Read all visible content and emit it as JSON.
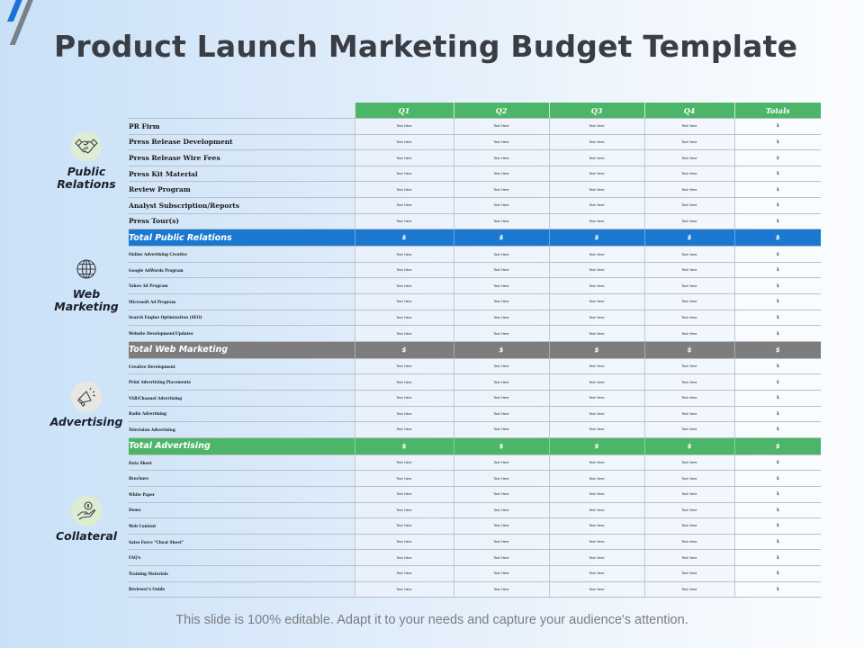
{
  "title": "Product Launch Marketing Budget Template",
  "footer": "This slide is 100% editable. Adapt it to your needs and capture your audience's attention.",
  "colors": {
    "header_green": "#4cb568",
    "total_public_relations": "#1b78d0",
    "total_web_marketing": "#7d7d7d",
    "total_advertising": "#4cb568"
  },
  "categories": [
    {
      "label_line1": "Public",
      "label_line2": "Relations",
      "icon": "handshake-icon"
    },
    {
      "label_line1": "Web",
      "label_line2": "Marketing",
      "icon": "globe-icon"
    },
    {
      "label_line1": "Advertising",
      "label_line2": "",
      "icon": "megaphone-icon"
    },
    {
      "label_line1": "Collateral",
      "label_line2": "",
      "icon": "hand-coin-icon"
    }
  ],
  "table": {
    "columns": [
      "Q1",
      "Q2",
      "Q3",
      "Q4",
      "Totals"
    ],
    "cell_placeholder": "Text Here",
    "total_placeholder": "$",
    "sections": [
      {
        "name": "Public Relations",
        "rows": [
          "PR Firm",
          "Press Release Development",
          "Press Release Wire Fees",
          "Press Kit Material",
          "Review Program",
          "Analyst Subscription/Reports",
          "Press Tour(s)"
        ],
        "total_label": "Total Public Relations",
        "total_values": [
          "$",
          "$",
          "$",
          "$",
          "$"
        ]
      },
      {
        "name": "Web Marketing",
        "rows": [
          "Online Advertising Creative",
          "Google AdWords Program",
          "Yahoo Ad Program",
          "Microsoft Ad Program",
          "Search Engine Optimization (SEO)",
          "Website Development/Updates"
        ],
        "total_label": "Total Web Marketing",
        "total_values": [
          "$",
          "$",
          "$",
          "$",
          "$"
        ]
      },
      {
        "name": "Advertising",
        "rows": [
          "Creative Development",
          "Print Advertising Placements",
          "VAR/Channel Advertising",
          "Radio Advertising",
          "Television Advertising"
        ],
        "total_label": "Total Advertising",
        "total_values": [
          "$",
          "$",
          "$",
          "$",
          "$"
        ]
      },
      {
        "name": "Collateral",
        "rows": [
          "Data Sheet",
          "Brochure",
          "White Paper",
          "Demo",
          "Web Content",
          "Sales Force \"Cheat Sheet\"",
          "FAQ's",
          "Training Materials",
          "Reviewer's Guide"
        ]
      }
    ]
  }
}
